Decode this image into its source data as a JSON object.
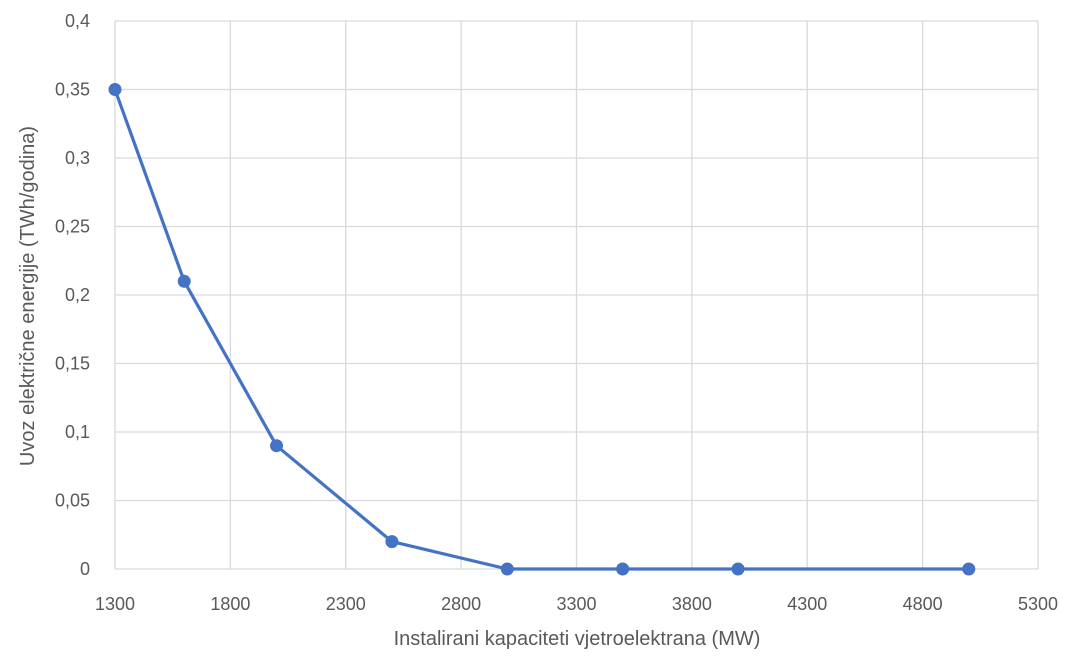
{
  "chart_data": {
    "type": "line",
    "title": "",
    "xlabel": "Instalirani kapaciteti vjetroelektrana (MW)",
    "ylabel": "Uvoz električne energije (TWh/godina)",
    "xlim": [
      1300,
      5300
    ],
    "ylim": [
      0,
      0.4
    ],
    "x_ticks": [
      1300,
      1800,
      2300,
      2800,
      3300,
      3800,
      4300,
      4800,
      5300
    ],
    "x_tick_labels": [
      "1300",
      "1800",
      "2300",
      "2800",
      "3300",
      "3800",
      "4300",
      "4800",
      "5300"
    ],
    "y_ticks": [
      0,
      0.05,
      0.1,
      0.15,
      0.2,
      0.25,
      0.3,
      0.35,
      0.4
    ],
    "y_tick_labels": [
      "0",
      "0,05",
      "0,1",
      "0,15",
      "0,2",
      "0,25",
      "0,3",
      "0,35",
      "0,4"
    ],
    "grid": true,
    "legend": "none",
    "series": [
      {
        "color": "#4472c4",
        "x": [
          1300,
          1600,
          2000,
          2500,
          3000,
          3500,
          4000,
          5000
        ],
        "y": [
          0.35,
          0.21,
          0.09,
          0.02,
          0,
          0,
          0,
          0
        ]
      }
    ]
  }
}
